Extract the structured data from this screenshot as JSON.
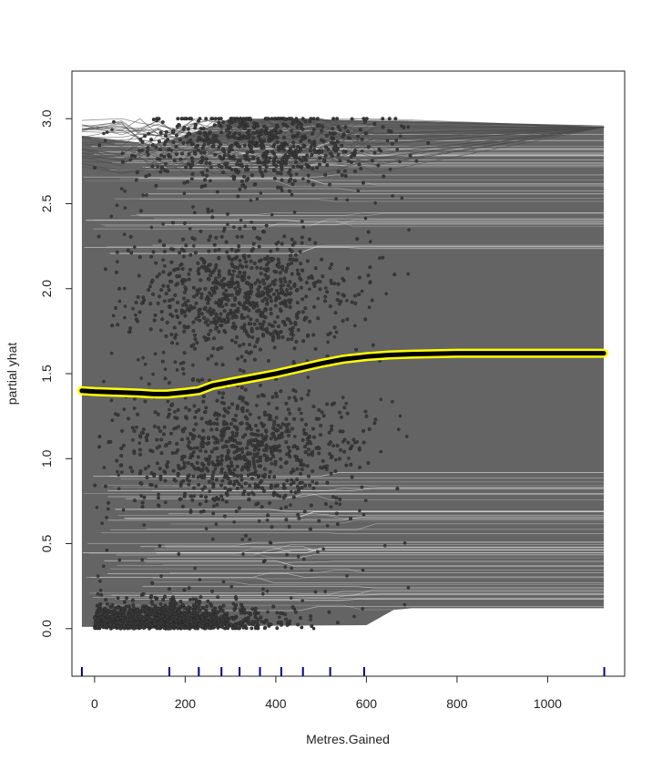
{
  "chart_data": {
    "type": "line",
    "title": "",
    "xlabel": "Metres.Gained",
    "ylabel": "partial yhat",
    "xlim": [
      -50,
      1170
    ],
    "ylim": [
      -0.28,
      3.28
    ],
    "x_ticks": [
      0,
      200,
      400,
      600,
      800,
      1000
    ],
    "x_tick_labels": [
      "0",
      "200",
      "400",
      "600",
      "800",
      "1000"
    ],
    "y_ticks": [
      0.0,
      0.5,
      1.0,
      1.5,
      2.0,
      2.5,
      3.0
    ],
    "y_tick_labels": [
      "0.0",
      "0.5",
      "1.0",
      "1.5",
      "2.0",
      "2.5",
      "3.0"
    ],
    "grid": false,
    "legend": "none",
    "colors": {
      "ice_lines": "#646464",
      "ice_highlight": "#f0f0f0",
      "points": "#3a3a3a",
      "pdp_line": "#000000",
      "pdp_outline": "#ffff00",
      "rug": "#00008b"
    },
    "pdp_curve": {
      "x": [
        -28,
        0,
        50,
        100,
        130,
        160,
        200,
        230,
        260,
        300,
        350,
        400,
        450,
        500,
        550,
        600,
        650,
        700,
        800,
        900,
        1000,
        1124
      ],
      "y": [
        1.4,
        1.395,
        1.39,
        1.385,
        1.38,
        1.38,
        1.39,
        1.4,
        1.43,
        1.45,
        1.475,
        1.5,
        1.53,
        1.56,
        1.585,
        1.6,
        1.61,
        1.615,
        1.62,
        1.62,
        1.62,
        1.62
      ]
    },
    "rug_ticks_x": [
      -28,
      165,
      230,
      280,
      320,
      365,
      412,
      460,
      520,
      595,
      1125
    ],
    "ice_x_range": [
      -28,
      1124
    ],
    "point_clusters_y": [
      0.02,
      1.05,
      1.95,
      2.85
    ]
  }
}
